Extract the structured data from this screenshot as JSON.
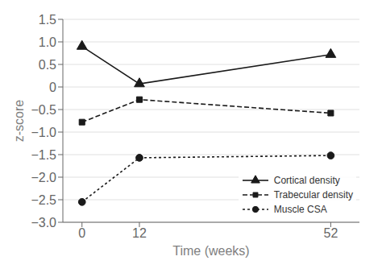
{
  "chart_data": {
    "type": "line",
    "x": [
      0,
      12,
      52
    ],
    "xlabel": "Time (weeks)",
    "ylabel": "z-score",
    "xlim": [
      -4,
      58
    ],
    "xticks": [
      0,
      12,
      52
    ],
    "ylim": [
      -3.0,
      1.5
    ],
    "yticks": [
      {
        "value": -3.0,
        "label": "−3.0"
      },
      {
        "value": -2.5,
        "label": "−2.5"
      },
      {
        "value": -2.0,
        "label": "−2.0"
      },
      {
        "value": -1.5,
        "label": "−1.5"
      },
      {
        "value": -1.0,
        "label": "−1.0"
      },
      {
        "value": -0.5,
        "label": "−0.5"
      },
      0,
      0.5,
      {
        "value": 1.0,
        "label": "1.0"
      },
      1.5
    ],
    "grid": true,
    "legend": "lower right",
    "series": [
      {
        "name": "Cortical density",
        "color": "#1a1a1a",
        "marker": "triangle",
        "line_style": "solid",
        "values": [
          0.9,
          0.07,
          0.72
        ]
      },
      {
        "name": "Trabecular density",
        "color": "#1a1a1a",
        "marker": "square",
        "line_style": "dashed",
        "values": [
          -0.78,
          -0.28,
          -0.58
        ]
      },
      {
        "name": "Muscle CSA",
        "color": "#1a1a1a",
        "marker": "circle",
        "line_style": "dotted",
        "values": [
          -2.55,
          -1.57,
          -1.52
        ]
      }
    ]
  }
}
